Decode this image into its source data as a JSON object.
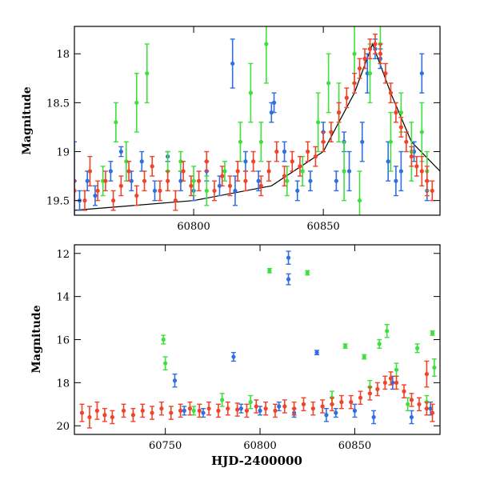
{
  "chart_data": [
    {
      "type": "scatter",
      "panel": "top",
      "xlabel": "",
      "ylabel": "Magnitude",
      "xlim": [
        60754,
        60895
      ],
      "ylim": [
        19.65,
        17.72
      ],
      "y_inverted": true,
      "x_ticks": [
        60800,
        60850
      ],
      "y_ticks": [
        18,
        18.5,
        19,
        19.5
      ],
      "x_tick_labels": [
        "60800",
        "60850"
      ],
      "y_tick_labels": [
        "18",
        "18.5",
        "19",
        "19.5"
      ],
      "grid": false,
      "legend": "none",
      "model_curve": {
        "color": "#000000",
        "points": [
          [
            60754,
            19.6
          ],
          [
            60800,
            19.5
          ],
          [
            60830,
            19.35
          ],
          [
            60850,
            19.0
          ],
          [
            60862,
            18.4
          ],
          [
            60869,
            17.9
          ],
          [
            60876,
            18.4
          ],
          [
            60884,
            18.9
          ],
          [
            60895,
            19.2
          ]
        ]
      },
      "series": [
        {
          "color": "#2f6fe0",
          "points": [
            [
              60754,
              19.4,
              0.1
            ],
            [
              60754,
              19.3,
              0.4
            ],
            [
              60756,
              19.5,
              0.1
            ],
            [
              60759,
              19.3,
              0.1
            ],
            [
              60762,
              19.45,
              0.1
            ],
            [
              60768,
              19.2,
              0.1
            ],
            [
              60772,
              19.0,
              0.05
            ],
            [
              60776,
              19.3,
              0.1
            ],
            [
              60780,
              19.1,
              0.1
            ],
            [
              60785,
              19.4,
              0.1
            ],
            [
              60790,
              19.05,
              0.05
            ],
            [
              60795,
              19.3,
              0.1
            ],
            [
              60800,
              19.4,
              0.1
            ],
            [
              60805,
              19.2,
              0.1
            ],
            [
              60810,
              19.35,
              0.1
            ],
            [
              60815,
              18.1,
              0.25
            ],
            [
              60816,
              19.4,
              0.15
            ],
            [
              60820,
              19.1,
              0.1
            ],
            [
              60825,
              19.3,
              0.1
            ],
            [
              60830,
              18.6,
              0.1
            ],
            [
              60831,
              18.5,
              0.1
            ],
            [
              60835,
              19.0,
              0.1
            ],
            [
              60840,
              19.4,
              0.1
            ],
            [
              60845,
              19.3,
              0.1
            ],
            [
              60850,
              18.8,
              0.1
            ],
            [
              60855,
              19.3,
              0.1
            ],
            [
              60858,
              18.9,
              0.1
            ],
            [
              60860,
              19.2,
              0.2
            ],
            [
              60865,
              18.9,
              0.2
            ],
            [
              60867,
              18.2,
              0.2
            ],
            [
              60870,
              17.95,
              0.1
            ],
            [
              60872,
              18.05,
              0.1
            ],
            [
              60875,
              19.1,
              0.2
            ],
            [
              60878,
              19.3,
              0.15
            ],
            [
              60880,
              19.2,
              0.2
            ],
            [
              60885,
              19.0,
              0.1
            ],
            [
              60888,
              18.2,
              0.2
            ],
            [
              60890,
              19.4,
              0.1
            ]
          ]
        },
        {
          "color": "#3ee03e",
          "points": [
            [
              60765,
              19.3,
              0.15
            ],
            [
              60770,
              18.7,
              0.2
            ],
            [
              60774,
              19.1,
              0.2
            ],
            [
              60778,
              18.5,
              0.3
            ],
            [
              60782,
              18.2,
              0.3
            ],
            [
              60790,
              19.2,
              0.2
            ],
            [
              60795,
              19.1,
              0.1
            ],
            [
              60800,
              19.3,
              0.15
            ],
            [
              60805,
              19.4,
              0.15
            ],
            [
              60812,
              19.2,
              0.1
            ],
            [
              60818,
              18.9,
              0.2
            ],
            [
              60822,
              18.4,
              0.3
            ],
            [
              60826,
              18.9,
              0.2
            ],
            [
              60828,
              17.9,
              0.4
            ],
            [
              60836,
              19.3,
              0.15
            ],
            [
              60842,
              19.2,
              0.15
            ],
            [
              60848,
              18.7,
              0.3
            ],
            [
              60852,
              18.3,
              0.3
            ],
            [
              60856,
              18.6,
              0.3
            ],
            [
              60858,
              19.2,
              0.3
            ],
            [
              60862,
              18.0,
              0.3
            ],
            [
              60864,
              19.5,
              0.3
            ],
            [
              60868,
              18.2,
              0.3
            ],
            [
              60872,
              17.9,
              0.2
            ],
            [
              60876,
              18.9,
              0.3
            ],
            [
              60880,
              18.6,
              0.2
            ],
            [
              60884,
              19.0,
              0.3
            ],
            [
              60888,
              18.8,
              0.3
            ],
            [
              60890,
              19.2,
              0.2
            ]
          ]
        },
        {
          "color": "#f0432a",
          "points": [
            [
              60754,
              19.4,
              0.1
            ],
            [
              60758,
              19.5,
              0.1
            ],
            [
              60760,
              19.2,
              0.15
            ],
            [
              60763,
              19.4,
              0.1
            ],
            [
              60766,
              19.3,
              0.1
            ],
            [
              60769,
              19.5,
              0.1
            ],
            [
              60772,
              19.35,
              0.1
            ],
            [
              60775,
              19.2,
              0.1
            ],
            [
              60778,
              19.45,
              0.1
            ],
            [
              60781,
              19.3,
              0.1
            ],
            [
              60784,
              19.15,
              0.1
            ],
            [
              60787,
              19.4,
              0.1
            ],
            [
              60790,
              19.3,
              0.1
            ],
            [
              60793,
              19.5,
              0.1
            ],
            [
              60796,
              19.2,
              0.1
            ],
            [
              60799,
              19.35,
              0.1
            ],
            [
              60802,
              19.3,
              0.1
            ],
            [
              60805,
              19.1,
              0.1
            ],
            [
              60808,
              19.4,
              0.1
            ],
            [
              60811,
              19.25,
              0.1
            ],
            [
              60814,
              19.35,
              0.1
            ],
            [
              60817,
              19.2,
              0.1
            ],
            [
              60820,
              19.3,
              0.1
            ],
            [
              60823,
              19.1,
              0.1
            ],
            [
              60826,
              19.35,
              0.1
            ],
            [
              60829,
              19.2,
              0.1
            ],
            [
              60832,
              19.0,
              0.1
            ],
            [
              60835,
              19.25,
              0.1
            ],
            [
              60838,
              19.1,
              0.1
            ],
            [
              60841,
              19.15,
              0.1
            ],
            [
              60844,
              19.0,
              0.1
            ],
            [
              60847,
              19.05,
              0.1
            ],
            [
              60850,
              18.9,
              0.1
            ],
            [
              60853,
              18.8,
              0.1
            ],
            [
              60856,
              18.6,
              0.1
            ],
            [
              60859,
              18.45,
              0.1
            ],
            [
              60862,
              18.3,
              0.1
            ],
            [
              60864,
              18.15,
              0.1
            ],
            [
              60866,
              18.05,
              0.1
            ],
            [
              60868,
              17.95,
              0.1
            ],
            [
              60870,
              17.9,
              0.1
            ],
            [
              60872,
              18.0,
              0.1
            ],
            [
              60874,
              18.2,
              0.1
            ],
            [
              60876,
              18.4,
              0.1
            ],
            [
              60878,
              18.6,
              0.1
            ],
            [
              60880,
              18.75,
              0.1
            ],
            [
              60882,
              18.9,
              0.1
            ],
            [
              60884,
              19.05,
              0.1
            ],
            [
              60886,
              19.15,
              0.1
            ],
            [
              60888,
              19.2,
              0.15
            ],
            [
              60890,
              19.3,
              0.15
            ],
            [
              60892,
              19.4,
              0.1
            ]
          ]
        }
      ]
    },
    {
      "type": "scatter",
      "panel": "bottom",
      "xlabel": "HJD-2400000",
      "ylabel": "Magnitude",
      "xlim": [
        60702,
        60895
      ],
      "ylim": [
        20.4,
        11.6
      ],
      "y_inverted": true,
      "x_ticks": [
        60750,
        60800,
        60850
      ],
      "y_ticks": [
        12,
        14,
        16,
        18,
        20
      ],
      "x_tick_labels": [
        "60750",
        "60800",
        "60850"
      ],
      "y_tick_labels": [
        "12",
        "14",
        "16",
        "18",
        "20"
      ],
      "grid": false,
      "legend": "none",
      "series": [
        {
          "color": "#2f6fe0",
          "points": [
            [
              60755,
              17.9,
              0.3
            ],
            [
              60760,
              19.3,
              0.2
            ],
            [
              60770,
              19.4,
              0.2
            ],
            [
              60786,
              16.8,
              0.2
            ],
            [
              60790,
              19.2,
              0.2
            ],
            [
              60800,
              19.3,
              0.2
            ],
            [
              60810,
              19.1,
              0.2
            ],
            [
              60815,
              12.2,
              0.3
            ],
            [
              60815,
              13.2,
              0.25
            ],
            [
              60818,
              19.4,
              0.2
            ],
            [
              60830,
              16.6,
              0.1
            ],
            [
              60835,
              19.5,
              0.3
            ],
            [
              60840,
              19.4,
              0.2
            ],
            [
              60850,
              19.3,
              0.3
            ],
            [
              60860,
              19.6,
              0.3
            ],
            [
              60870,
              18.0,
              0.3
            ],
            [
              60880,
              19.6,
              0.3
            ],
            [
              60890,
              19.2,
              0.3
            ]
          ]
        },
        {
          "color": "#3ee03e",
          "points": [
            [
              60749,
              16.0,
              0.2
            ],
            [
              60750,
              17.1,
              0.3
            ],
            [
              60765,
              19.3,
              0.2
            ],
            [
              60780,
              18.8,
              0.3
            ],
            [
              60795,
              18.9,
              0.3
            ],
            [
              60805,
              12.8,
              0.1
            ],
            [
              60825,
              12.9,
              0.1
            ],
            [
              60838,
              18.7,
              0.3
            ],
            [
              60845,
              16.3,
              0.1
            ],
            [
              60855,
              16.8,
              0.1
            ],
            [
              60858,
              18.2,
              0.3
            ],
            [
              60863,
              16.2,
              0.2
            ],
            [
              60867,
              15.6,
              0.3
            ],
            [
              60872,
              17.4,
              0.3
            ],
            [
              60878,
              19.0,
              0.3
            ],
            [
              60883,
              16.4,
              0.2
            ],
            [
              60888,
              18.9,
              0.3
            ],
            [
              60891,
              15.7,
              0.1
            ],
            [
              60892,
              17.3,
              0.4
            ]
          ]
        },
        {
          "color": "#f0432a",
          "points": [
            [
              60706,
              19.4,
              0.4
            ],
            [
              60710,
              19.6,
              0.5
            ],
            [
              60714,
              19.3,
              0.4
            ],
            [
              60718,
              19.5,
              0.3
            ],
            [
              60722,
              19.6,
              0.3
            ],
            [
              60728,
              19.3,
              0.3
            ],
            [
              60733,
              19.5,
              0.3
            ],
            [
              60738,
              19.3,
              0.3
            ],
            [
              60743,
              19.4,
              0.3
            ],
            [
              60748,
              19.2,
              0.3
            ],
            [
              60753,
              19.4,
              0.3
            ],
            [
              60758,
              19.3,
              0.3
            ],
            [
              60763,
              19.2,
              0.3
            ],
            [
              60768,
              19.3,
              0.3
            ],
            [
              60773,
              19.2,
              0.3
            ],
            [
              60778,
              19.3,
              0.3
            ],
            [
              60783,
              19.2,
              0.3
            ],
            [
              60788,
              19.25,
              0.3
            ],
            [
              60793,
              19.3,
              0.3
            ],
            [
              60798,
              19.1,
              0.3
            ],
            [
              60803,
              19.2,
              0.3
            ],
            [
              60808,
              19.3,
              0.3
            ],
            [
              60813,
              19.1,
              0.3
            ],
            [
              60818,
              19.2,
              0.3
            ],
            [
              60823,
              19.0,
              0.3
            ],
            [
              60828,
              19.2,
              0.3
            ],
            [
              60833,
              19.1,
              0.3
            ],
            [
              60838,
              19.0,
              0.3
            ],
            [
              60843,
              18.9,
              0.3
            ],
            [
              60848,
              18.9,
              0.3
            ],
            [
              60853,
              18.7,
              0.3
            ],
            [
              60858,
              18.5,
              0.3
            ],
            [
              60862,
              18.3,
              0.3
            ],
            [
              60866,
              18.0,
              0.3
            ],
            [
              60869,
              17.8,
              0.3
            ],
            [
              60872,
              18.0,
              0.3
            ],
            [
              60876,
              18.4,
              0.3
            ],
            [
              60880,
              18.8,
              0.3
            ],
            [
              60884,
              19.0,
              0.3
            ],
            [
              60888,
              17.6,
              0.6
            ],
            [
              60888,
              19.2,
              0.3
            ],
            [
              60891,
              19.4,
              0.4
            ]
          ]
        }
      ]
    }
  ]
}
